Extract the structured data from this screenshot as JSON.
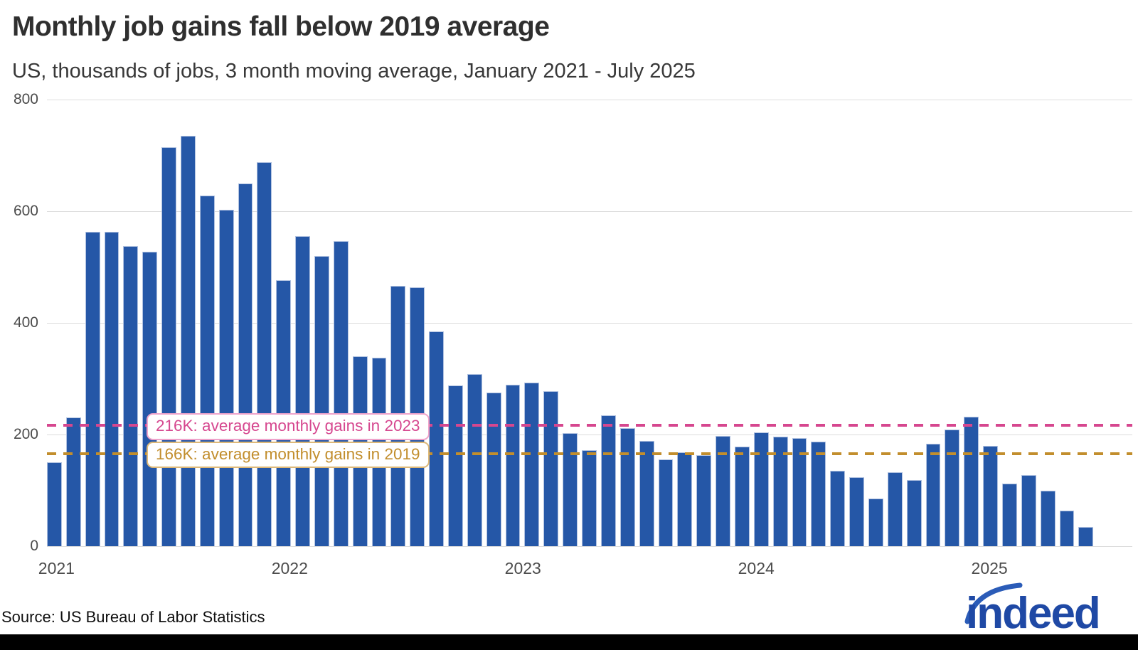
{
  "header": {
    "title": "Monthly job gains fall below 2019 average",
    "subtitle": "US, thousands of jobs, 3 month moving average, January 2021 - July 2025"
  },
  "chart_data": {
    "type": "bar",
    "title": "Monthly job gains fall below 2019 average",
    "subtitle": "US, thousands of jobs, 3 month moving average, January 2021 - July 2025",
    "unit": "thousands of jobs",
    "grid": "horizontal",
    "ylim": [
      0,
      800
    ],
    "yticks": [
      0,
      200,
      400,
      600,
      800
    ],
    "bar_color": "#2557a7",
    "x": [
      "Jan 2021",
      "Feb 2021",
      "Mar 2021",
      "Apr 2021",
      "May 2021",
      "Jun 2021",
      "Jul 2021",
      "Aug 2021",
      "Sep 2021",
      "Oct 2021",
      "Nov 2021",
      "Dec 2021",
      "Jan 2022",
      "Feb 2022",
      "Mar 2022",
      "Apr 2022",
      "May 2022",
      "Jun 2022",
      "Jul 2022",
      "Aug 2022",
      "Sep 2022",
      "Oct 2022",
      "Nov 2022",
      "Dec 2022",
      "Jan 2023",
      "Feb 2023",
      "Mar 2023",
      "Apr 2023",
      "May 2023",
      "Jun 2023",
      "Jul 2023",
      "Aug 2023",
      "Sep 2023",
      "Oct 2023",
      "Nov 2023",
      "Dec 2023",
      "Jan 2024",
      "Feb 2024",
      "Mar 2024",
      "Apr 2024",
      "May 2024",
      "Jun 2024",
      "Jul 2024",
      "Aug 2024",
      "Sep 2024",
      "Oct 2024",
      "Nov 2024",
      "Dec 2024",
      "Jan 2025",
      "Feb 2025",
      "Mar 2025",
      "Apr 2025",
      "May 2025",
      "Jun 2025",
      "Jul 2025"
    ],
    "values": [
      150,
      230,
      563,
      563,
      537,
      528,
      715,
      735,
      628,
      603,
      650,
      688,
      477,
      556,
      520,
      547,
      340,
      337,
      466,
      464,
      385,
      288,
      308,
      275,
      289,
      293,
      278,
      202,
      172,
      234,
      211,
      189,
      156,
      168,
      163,
      198,
      178,
      204,
      196,
      194,
      187,
      135,
      123,
      85,
      133,
      119,
      183,
      209,
      232,
      180,
      112,
      127,
      99,
      64,
      35
    ],
    "xticks": [
      {
        "label": "2021",
        "month_index": 0
      },
      {
        "label": "2022",
        "month_index": 12
      },
      {
        "label": "2023",
        "month_index": 24
      },
      {
        "label": "2024",
        "month_index": 36
      },
      {
        "label": "2025",
        "month_index": 48
      }
    ],
    "reference_lines": [
      {
        "value": 216,
        "label": "216K: average monthly gains in 2023",
        "color": "#d6478f",
        "box_border": "#efa3ca"
      },
      {
        "value": 166,
        "label": "166K: average monthly gains in 2019",
        "color": "#c28e2d",
        "box_border": "#ddb878"
      }
    ],
    "legend_position": "none"
  },
  "footer": {
    "source": "Source: US Bureau of Labor Statistics",
    "logo_text": "indeed"
  },
  "colors": {
    "bar": "#2557a7",
    "bar_border": "#b0c1e0",
    "gridline": "#dcdcdc",
    "pink": "#d6478f",
    "gold": "#c28e2d",
    "logo_blue": "#1f49a5",
    "footer_bar": "#000000"
  }
}
